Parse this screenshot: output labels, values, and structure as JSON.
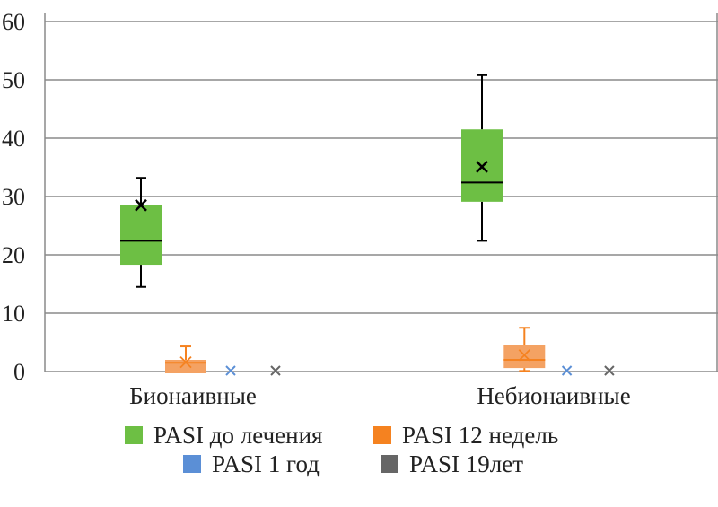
{
  "chart_data": {
    "type": "boxplot",
    "title": "",
    "xlabel": "",
    "ylabel": "",
    "ylim": [
      0,
      60
    ],
    "yticks": [
      "0",
      "10",
      "20",
      "30",
      "40",
      "50",
      "60"
    ],
    "grid": true,
    "categories": [
      "Бионаивные",
      "Небионаивные"
    ],
    "legend_position": "bottom",
    "series": [
      {
        "name": "PASI до лечения",
        "color": "#6dbf44",
        "boxes": [
          {
            "min": 14.5,
            "q1": 18.3,
            "median": 22.4,
            "q3": 28.5,
            "max": 33.2,
            "mean": 28.5
          },
          {
            "min": 22.4,
            "q1": 29.1,
            "median": 32.4,
            "q3": 41.5,
            "max": 50.8,
            "mean": 35.1
          }
        ]
      },
      {
        "name": "PASI 12 недель",
        "color": "#f4a263",
        "line_color": "#f58220",
        "boxes": [
          {
            "min": 0,
            "q1": 0,
            "median": 1.5,
            "q3": 2.0,
            "max": 4.3,
            "mean": 1.6
          },
          {
            "min": 0.1,
            "q1": 0.6,
            "median": 2.0,
            "q3": 4.5,
            "max": 7.5,
            "mean": 2.8
          }
        ]
      },
      {
        "name": "PASI 1 год",
        "color": "#5b8fd6",
        "boxes": [
          {
            "min": 0,
            "q1": 0,
            "median": 0,
            "q3": 0,
            "max": 0,
            "mean": 0
          },
          {
            "min": 0,
            "q1": 0,
            "median": 0,
            "q3": 0,
            "max": 0,
            "mean": 0
          }
        ]
      },
      {
        "name": "PASI 19лет",
        "color": "#666666",
        "boxes": [
          {
            "min": 0,
            "q1": 0,
            "median": 0,
            "q3": 0,
            "max": 0,
            "mean": 0
          },
          {
            "min": 0,
            "q1": 0,
            "median": 0,
            "q3": 0,
            "max": 0,
            "mean": 0
          }
        ]
      }
    ]
  }
}
